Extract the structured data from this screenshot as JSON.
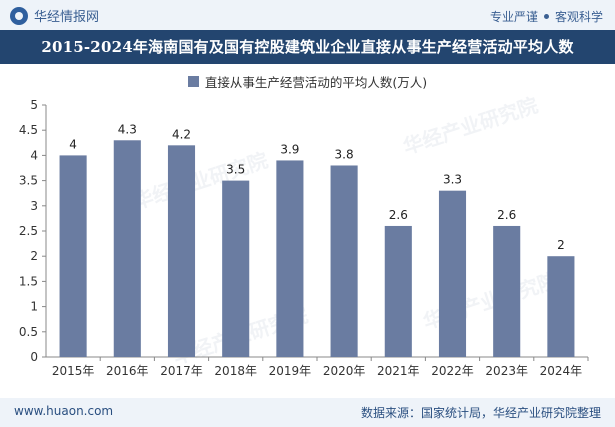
{
  "header": {
    "brand": "华经情报网",
    "slogan_left": "专业严谨",
    "slogan_right": "客观科学"
  },
  "chart_data": {
    "type": "bar",
    "title": "2015-2024年海南国有及国有控股建筑业企业直接从事生产经营活动平均人数",
    "categories": [
      "2015年",
      "2016年",
      "2017年",
      "2018年",
      "2019年",
      "2020年",
      "2021年",
      "2022年",
      "2023年",
      "2024年"
    ],
    "series": [
      {
        "name": "直接从事生产经营活动的平均人数(万人)",
        "values": [
          4,
          4.3,
          4.2,
          3.5,
          3.9,
          3.8,
          2.6,
          3.3,
          2.6,
          2
        ]
      }
    ],
    "value_labels": [
      "4",
      "4.3",
      "4.2",
      "3.5",
      "3.9",
      "3.8",
      "2.6",
      "3.3",
      "2.6",
      "2"
    ],
    "yticks": [
      "0",
      "0.5",
      "1",
      "1.5",
      "2",
      "2.5",
      "3",
      "3.5",
      "4",
      "4.5",
      "5"
    ],
    "ylim": [
      0,
      5
    ],
    "grid": false,
    "legend_position": "top",
    "colors": {
      "bar": "#6a7ca1",
      "title_bg": "#23456f"
    }
  },
  "footer": {
    "website": "www.huaon.com",
    "source": "数据来源：国家统计局，华经产业研究院整理"
  }
}
